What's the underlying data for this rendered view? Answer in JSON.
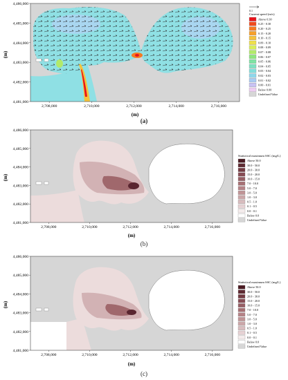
{
  "unit_label": "(m)",
  "y_ticks": [
    "4,486,000",
    "4,485,000",
    "4,484,000",
    "4,483,000",
    "4,482,000",
    "4,481,000"
  ],
  "x_ticks": [
    "2,708,000",
    "2,710,000",
    "2,712,000",
    "2,714,000",
    "2,716,000"
  ],
  "panels": [
    {
      "id": "a",
      "label": "(a)",
      "legend_title": "Current speed (m/s)",
      "scale_value": "0.1",
      "legend_items": [
        {
          "label": "Above 0.30",
          "color": "#e8141c"
        },
        {
          "label": "0.25 - 0.30",
          "color": "#f04a1c"
        },
        {
          "label": "0.20 - 0.25",
          "color": "#f57a22"
        },
        {
          "label": "0.15 - 0.20",
          "color": "#f7a02a"
        },
        {
          "label": "0.10 - 0.15",
          "color": "#f5c23a"
        },
        {
          "label": "0.09 - 0.10",
          "color": "#efe04a"
        },
        {
          "label": "0.08 - 0.09",
          "color": "#d8ee5a"
        },
        {
          "label": "0.07 - 0.08",
          "color": "#b2ea6a"
        },
        {
          "label": "0.06 - 0.07",
          "color": "#8ee67e"
        },
        {
          "label": "0.05 - 0.06",
          "color": "#7ee4a4"
        },
        {
          "label": "0.04 - 0.05",
          "color": "#7ee2c2"
        },
        {
          "label": "0.03 - 0.04",
          "color": "#82deda"
        },
        {
          "label": "0.02 - 0.03",
          "color": "#8ed6ea"
        },
        {
          "label": "0.01 - 0.02",
          "color": "#a8cbf2"
        },
        {
          "label": "0.00 - 0.01",
          "color": "#c8c2f4"
        },
        {
          "label": "Below 0.00",
          "color": "#eecdf2"
        },
        {
          "label": "Undefined Value",
          "color": "#d6d6d6"
        }
      ]
    },
    {
      "id": "b",
      "label": "(b)",
      "legend_title": "Statistical maximum SSC (mg/L)",
      "legend_items": [
        {
          "label": "Above 50.0",
          "color": "#4a1a22"
        },
        {
          "label": "30.0 - 50.0",
          "color": "#5e2a32"
        },
        {
          "label": "20.0 - 30.0",
          "color": "#733a42"
        },
        {
          "label": "15.0 - 20.0",
          "color": "#864c54"
        },
        {
          "label": "10.0 - 15.0",
          "color": "#965e64"
        },
        {
          "label": "7.0 - 10.0",
          "color": "#a67074"
        },
        {
          "label": "5.0 - 7.0",
          "color": "#b48286"
        },
        {
          "label": "3.0 - 5.0",
          "color": "#c09496"
        },
        {
          "label": "1.0 - 3.0",
          "color": "#caa6a8"
        },
        {
          "label": "0.5 - 1.0",
          "color": "#d8bcbe"
        },
        {
          "label": "0.1 - 0.5",
          "color": "#e6d2d4"
        },
        {
          "label": "0.0 - 0.1",
          "color": "#f4ecec"
        },
        {
          "label": "Below 0.0",
          "color": "#ffffff"
        },
        {
          "label": "Undefined Value",
          "color": "#d6d6d6"
        }
      ]
    },
    {
      "id": "c",
      "label": "(c)",
      "legend_title": "Statistical maximum SSC (mg/L)",
      "legend_items": [
        {
          "label": "Above 50.0",
          "color": "#4a1a22"
        },
        {
          "label": "30.0 - 50.0",
          "color": "#5e2a32"
        },
        {
          "label": "20.0 - 30.0",
          "color": "#733a42"
        },
        {
          "label": "15.0 - 20.0",
          "color": "#864c54"
        },
        {
          "label": "10.0 - 15.0",
          "color": "#965e64"
        },
        {
          "label": "7.0 - 10.0",
          "color": "#a67074"
        },
        {
          "label": "5.0 - 7.0",
          "color": "#b48286"
        },
        {
          "label": "3.0 - 5.0",
          "color": "#c09496"
        },
        {
          "label": "1.0 - 3.0",
          "color": "#caa6a8"
        },
        {
          "label": "0.5 - 1.0",
          "color": "#d8bcbe"
        },
        {
          "label": "0.1 - 0.5",
          "color": "#e6d2d4"
        },
        {
          "label": "0.0 - 0.1",
          "color": "#f4ecec"
        },
        {
          "label": "Below 0.0",
          "color": "#ffffff"
        },
        {
          "label": "Undefined Value",
          "color": "#d6d6d6"
        }
      ]
    }
  ],
  "colors": {
    "land": "#d6d6d6",
    "water_a": "#8fe0e4",
    "water_a_light": "#a9d6f0",
    "ssc_light": "#ecdcdc",
    "ssc_mid": "#d2b2b4",
    "ssc_dark": "#a0686c",
    "ssc_core": "#5a2630",
    "arrow": "#2a2a2a"
  }
}
